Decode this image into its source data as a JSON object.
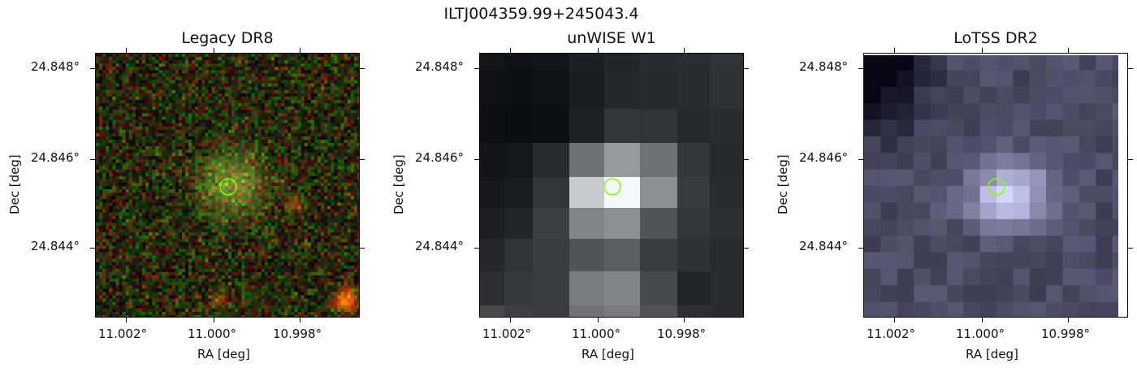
{
  "figure_title": "ILTJ004359.99+245043.4",
  "panels": [
    {
      "title": "Legacy DR8",
      "xlabel": "RA [deg]",
      "ylabel": "Dec [deg]",
      "x_ticks": [
        "11.002°",
        "11.000°",
        "10.998°"
      ],
      "y_ticks": [
        "24.848°",
        "24.846°",
        "24.844°"
      ],
      "image": "color optical cutout with noisy red-green background, diffuse source at center and red compact sources at lower right"
    },
    {
      "title": "unWISE W1",
      "xlabel": "RA [deg]",
      "ylabel": "Dec [deg]",
      "x_ticks": [
        "11.002°",
        "11.000°",
        "10.998°"
      ],
      "y_ticks": [
        "24.848°",
        "24.846°",
        "24.844°"
      ],
      "image": "grayscale pixelated infrared cutout with bright central source"
    },
    {
      "title": "LoTSS DR2",
      "xlabel": "RA [deg]",
      "ylabel": "Dec [deg]",
      "x_ticks": [
        "11.002°",
        "11.000°",
        "10.998°"
      ],
      "y_ticks": [
        "24.848°",
        "24.846°",
        "24.844°"
      ],
      "image": "bluish-gray pixelated radio cutout with bright central source"
    }
  ],
  "marker": {
    "shape": "circle",
    "color": "#7fff00"
  }
}
